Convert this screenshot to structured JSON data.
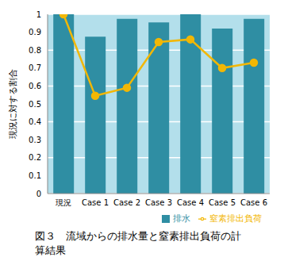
{
  "chart_data": {
    "type": "bar",
    "title": "図３　流域からの排水量と窒素排出負荷の計算結果",
    "y_label": "現況に対する割合",
    "categories": [
      "現況",
      "Case 1",
      "Case 2",
      "Case 3",
      "Case 4",
      "Case 5",
      "Case 6"
    ],
    "series": [
      {
        "name": "排水",
        "type": "bar",
        "color": "#2f8ea3",
        "values": [
          1.0,
          0.875,
          0.975,
          0.955,
          1.0,
          0.92,
          0.975
        ]
      },
      {
        "name": "窒素排出負荷",
        "type": "line",
        "color": "#f2b705",
        "marker": "circle",
        "values": [
          1.0,
          0.545,
          0.59,
          0.845,
          0.86,
          0.7,
          0.73
        ]
      }
    ],
    "ylim": [
      0,
      1
    ],
    "yticks": [
      0,
      0.1,
      0.2,
      0.3,
      0.4,
      0.5,
      0.6,
      0.7,
      0.8,
      0.9,
      1
    ],
    "grid": true,
    "legend": "bottom"
  }
}
